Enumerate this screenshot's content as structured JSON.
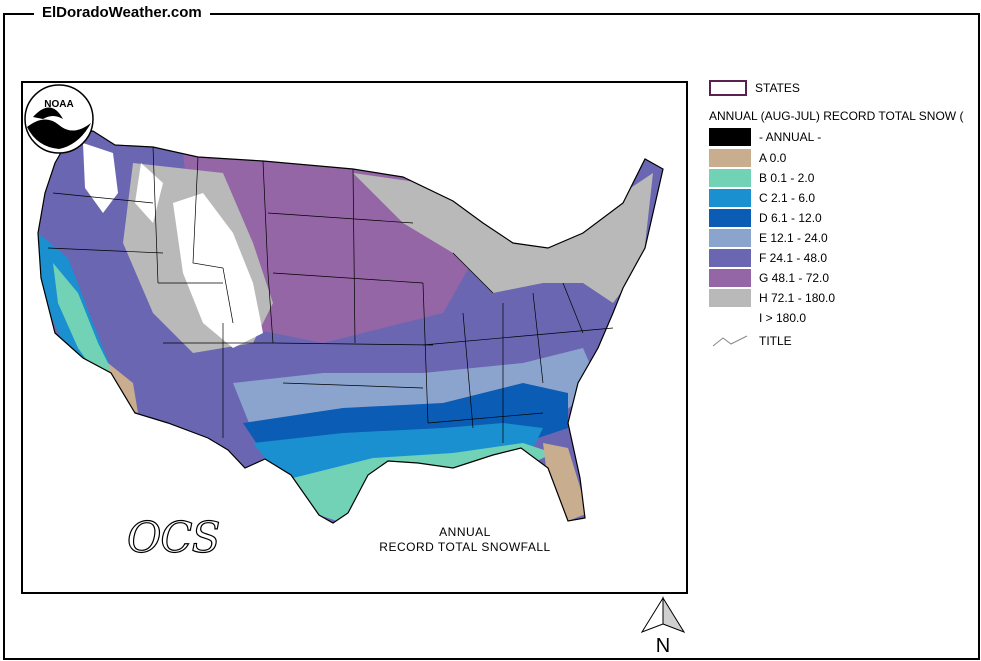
{
  "site": {
    "title": "ElDoradoWeather.com"
  },
  "map": {
    "caption_line1": "ANNUAL",
    "caption_line2": "RECORD TOTAL SNOWFALL",
    "logo_text": "NOAA",
    "ocs_text": "OCS",
    "north_label": "N"
  },
  "legend": {
    "states_label": "STATES",
    "header": "ANNUAL (AUG-JUL) RECORD TOTAL SNOW (",
    "group_label": "- ANNUAL -",
    "title_label": "TITLE",
    "classes": [
      {
        "label": "A 0.0",
        "color": "#c8ad8f"
      },
      {
        "label": "B 0.1 - 2.0",
        "color": "#72d2b6"
      },
      {
        "label": "C 2.1 - 6.0",
        "color": "#1b90d0"
      },
      {
        "label": "D 6.1 - 12.0",
        "color": "#0a5cb4"
      },
      {
        "label": "E 12.1 - 24.0",
        "color": "#8aa4ce"
      },
      {
        "label": "F 24.1 - 48.0",
        "color": "#6a66b2"
      },
      {
        "label": "G 48.1 - 72.0",
        "color": "#9566a6"
      },
      {
        "label": "H 72.1 - 180.0",
        "color": "#b9b9b9"
      },
      {
        "label": "I > 180.0",
        "color": "#ffffff"
      }
    ]
  }
}
